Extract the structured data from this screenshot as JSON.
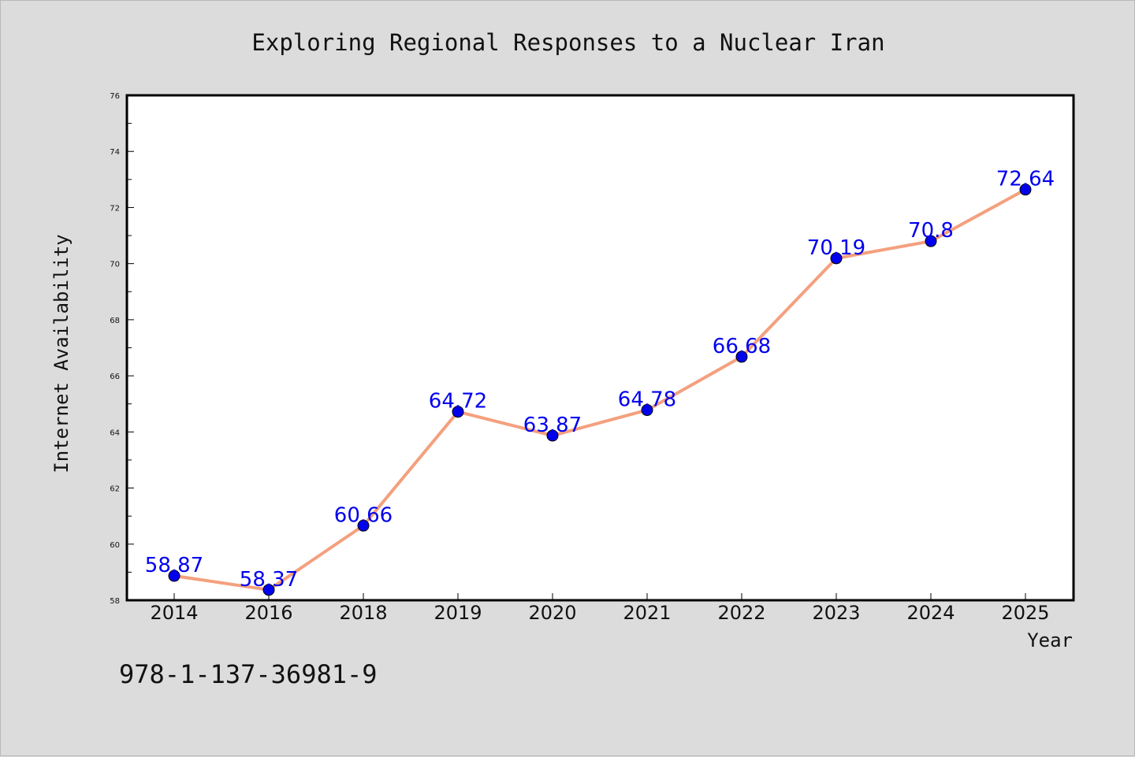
{
  "chart_data": {
    "type": "line",
    "title": "Exploring Regional Responses to a Nuclear Iran",
    "xlabel": "Year",
    "ylabel": "Internet Availability",
    "categories": [
      "2014",
      "2016",
      "2018",
      "2019",
      "2020",
      "2021",
      "2022",
      "2023",
      "2024",
      "2025"
    ],
    "series": [
      {
        "values": [
          58.87,
          58.37,
          60.66,
          64.72,
          63.87,
          64.78,
          66.68,
          70.19,
          70.8,
          72.64
        ],
        "labels": [
          "58.87",
          "58.37",
          "60.66",
          "64.72",
          "63.87",
          "64.78",
          "66.68",
          "70.19",
          "70.8",
          "72.64"
        ],
        "line_color": "#f4a07e",
        "marker_color": "#0000ee"
      }
    ],
    "ylim": [
      58,
      76
    ],
    "yticks": [
      58,
      60,
      62,
      64,
      66,
      68,
      70,
      72,
      74,
      76
    ],
    "grid": false,
    "legend": "none"
  },
  "footer": {
    "code": "978-1-137-36981-9"
  },
  "colors": {
    "background": "#dcdcdc",
    "plot_background": "#ffffff",
    "line": "#f4a07e",
    "marker": "#0000ee"
  }
}
